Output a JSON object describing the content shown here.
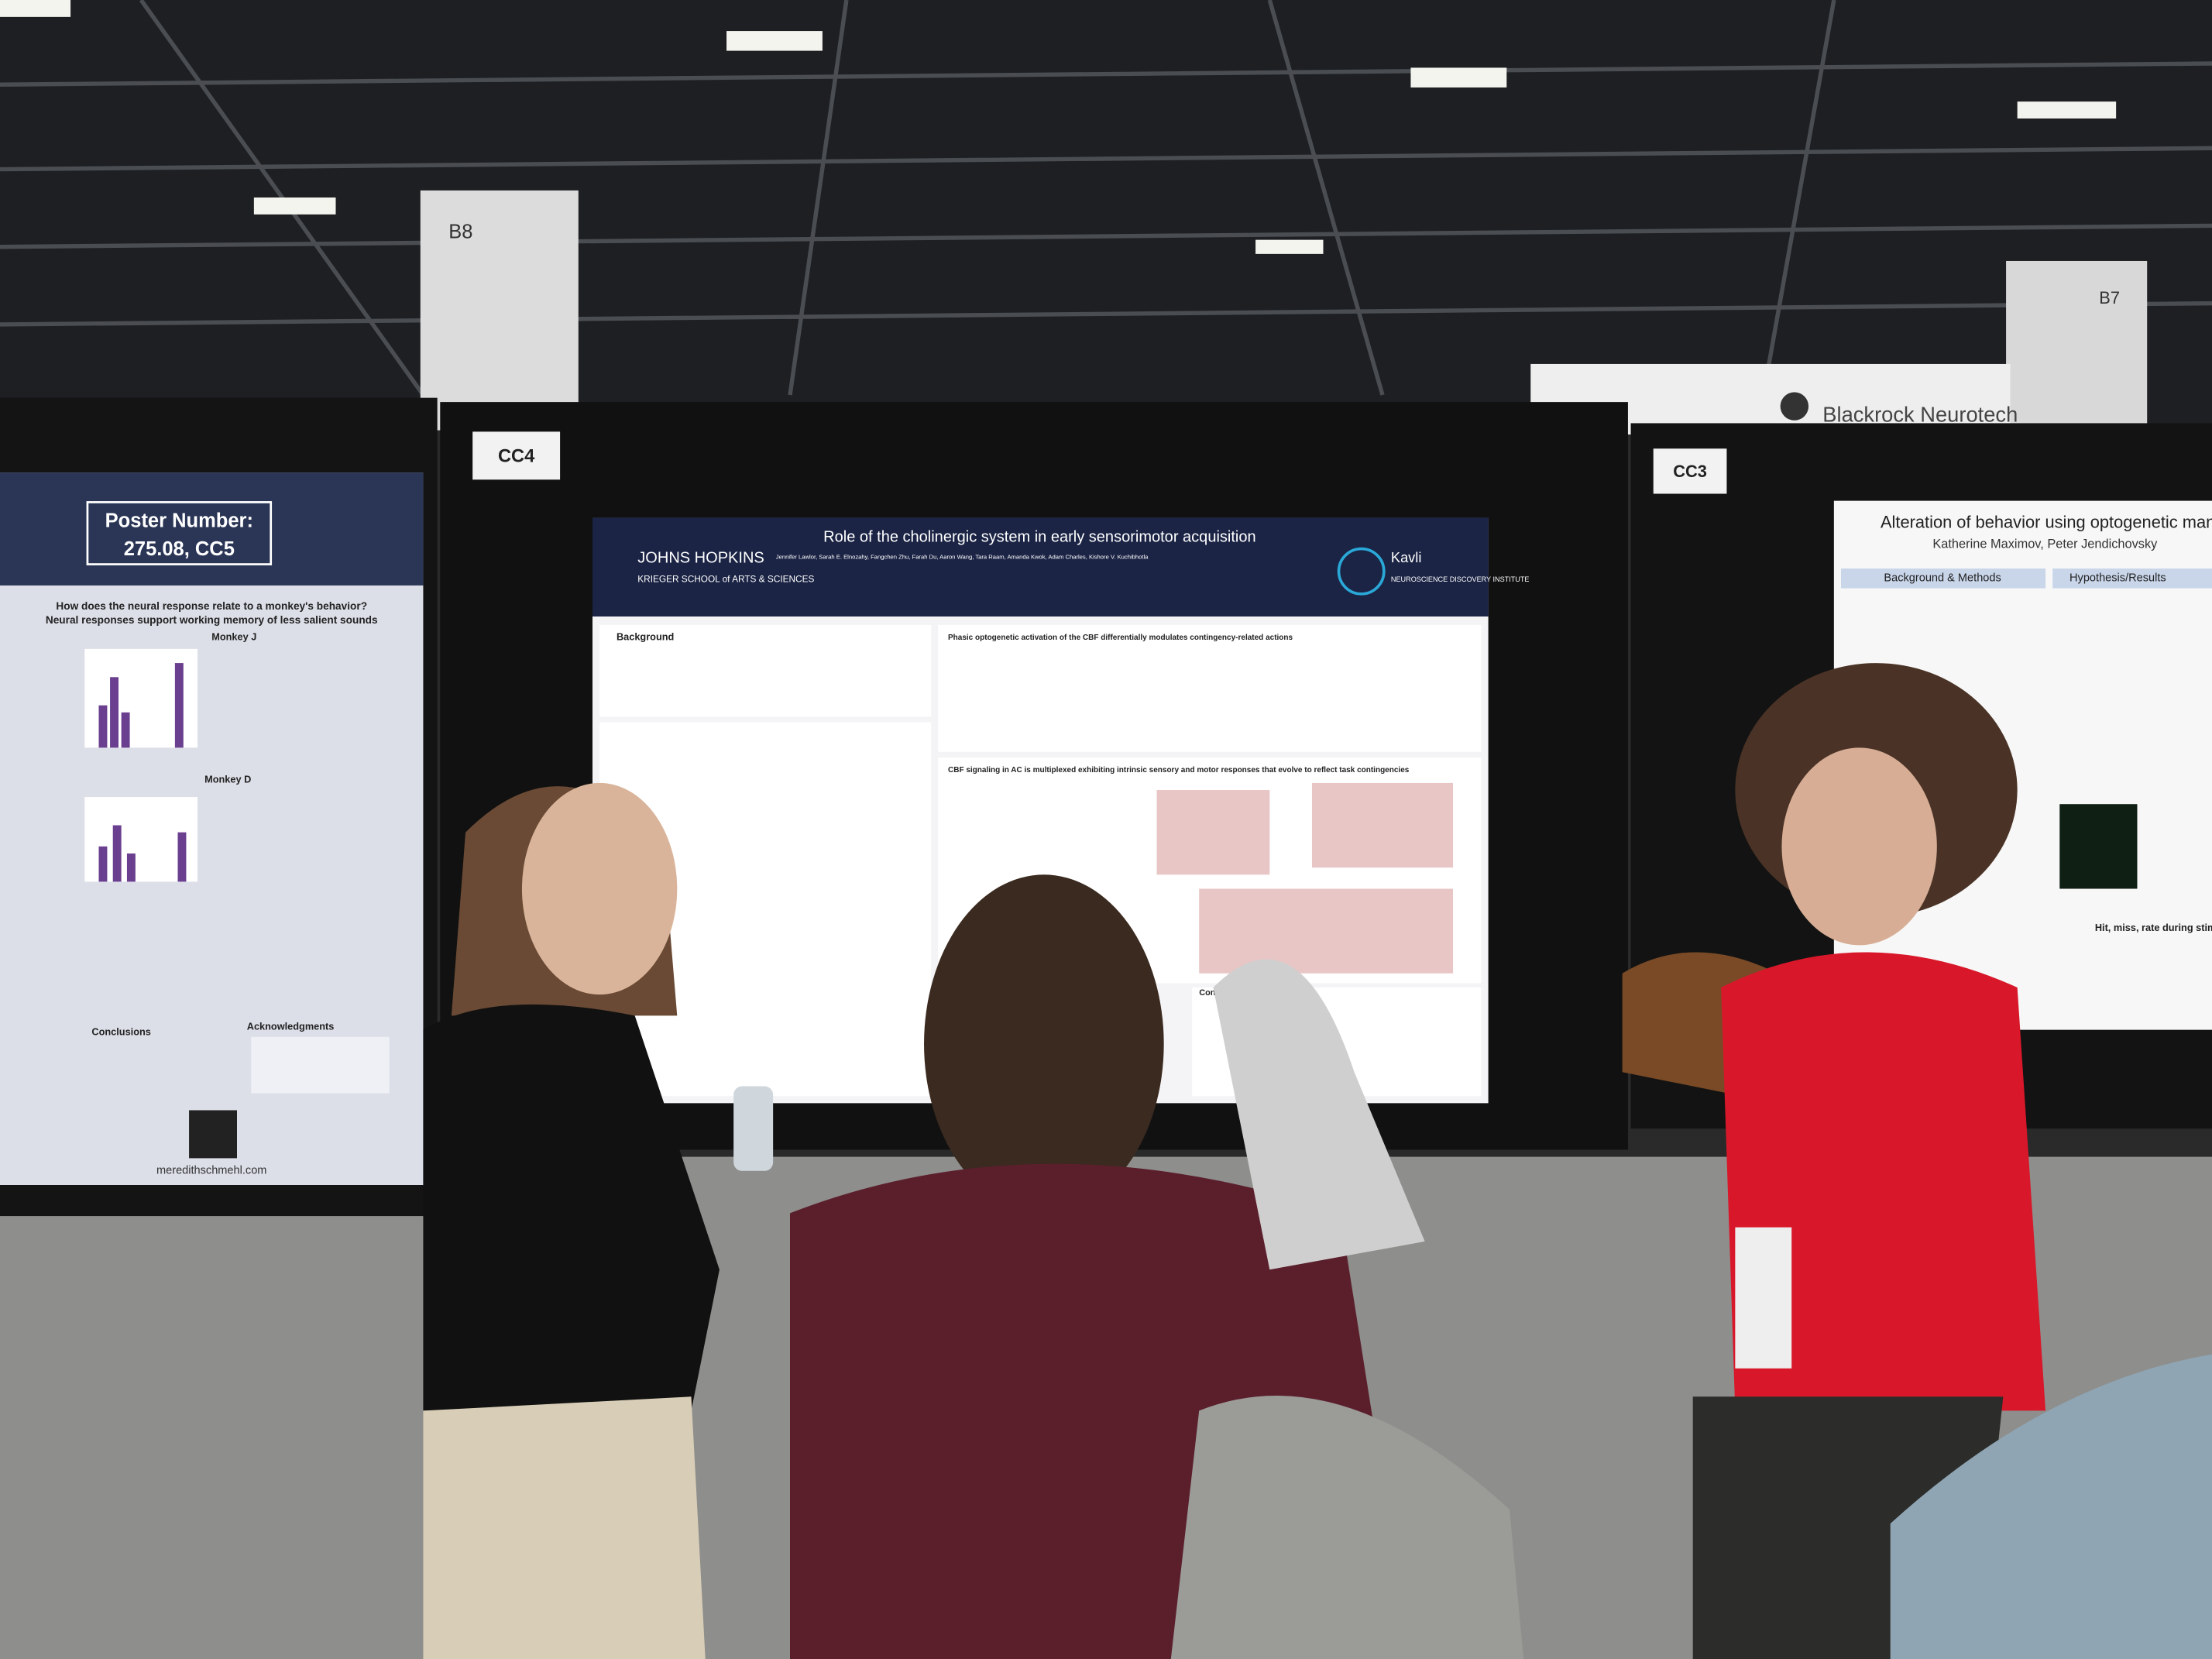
{
  "signs": {
    "column_left": "B8",
    "column_right": "B7",
    "booth": "Blackrock Neurotech"
  },
  "boards": [
    {
      "label": "CC4"
    },
    {
      "label": "CC3"
    }
  ],
  "posters": {
    "left": {
      "box_title": "Poster Number:",
      "box_number": "275.08, CC5",
      "headings": [
        "How does the neural response relate to a monkey's behavior?",
        "Neural responses support working memory of less salient sounds",
        "Monkey J",
        "Monkey D",
        "Conclusions",
        "Acknowledgments"
      ],
      "footer": "meredithschmehl.com"
    },
    "center": {
      "title": "Role of the cholinergic system in early sensorimotor acquisition",
      "institution": "JOHNS HOPKINS",
      "school": "KRIEGER SCHOOL of ARTS & SCIENCES",
      "partner": "Kavli",
      "partner_sub": "NEUROSCIENCE DISCOVERY INSTITUTE",
      "authors": "Jennifer Lawlor, Sarah E. Elnozahy, Fangchen Zhu, Farah Du, Aaron Wang, Tara Raam, Amanda Kwok, Adam Charles, Kishore V. Kuchibhotla",
      "sections": [
        "Background",
        "Phasic optogenetic activation of the CBF differentially modulates contingency-related actions",
        "CBF signaling in AC is multiplexed exhibiting intrinsic sensory and motor responses that evolve to reflect task contingencies",
        "Conclusion"
      ]
    },
    "right": {
      "title": "Alteration of behavior using optogenetic manipu",
      "authors": "Katherine Maximov, Peter Jendichovsky",
      "sections": [
        "Background & Methods",
        "Hypothesis/Results"
      ],
      "caption": "Hit, miss, rate during stimulation"
    }
  }
}
